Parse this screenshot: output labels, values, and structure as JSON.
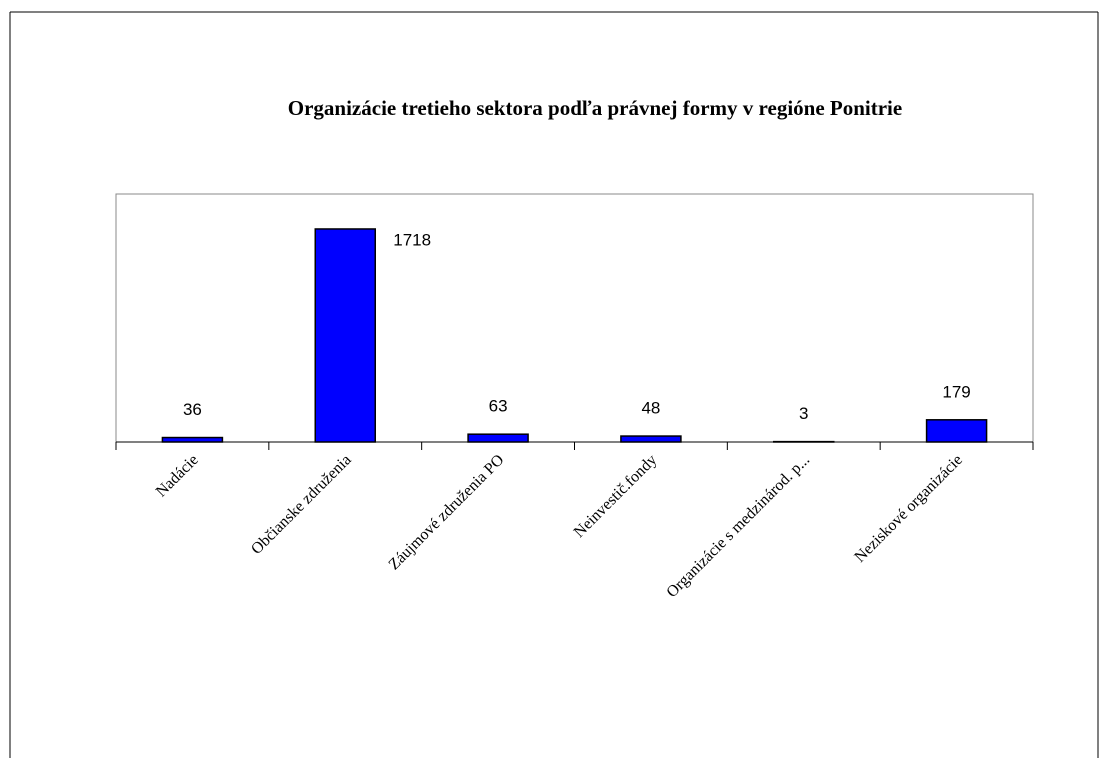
{
  "chart_data": {
    "type": "bar",
    "title": "Organizácie tretieho sektora podľa právnej formy  v regióne Ponitrie",
    "categories": [
      "Nadácie",
      "Občianske združenia",
      "Záujmové združenia PO",
      "Neinvestič.fondy",
      "Organizácie s medzinárod. p...",
      "Neziskové organizácie"
    ],
    "values": [
      36,
      1718,
      63,
      48,
      3,
      179
    ],
    "color": "#0000ff",
    "ylim": [
      0,
      2000
    ],
    "grid": false
  }
}
